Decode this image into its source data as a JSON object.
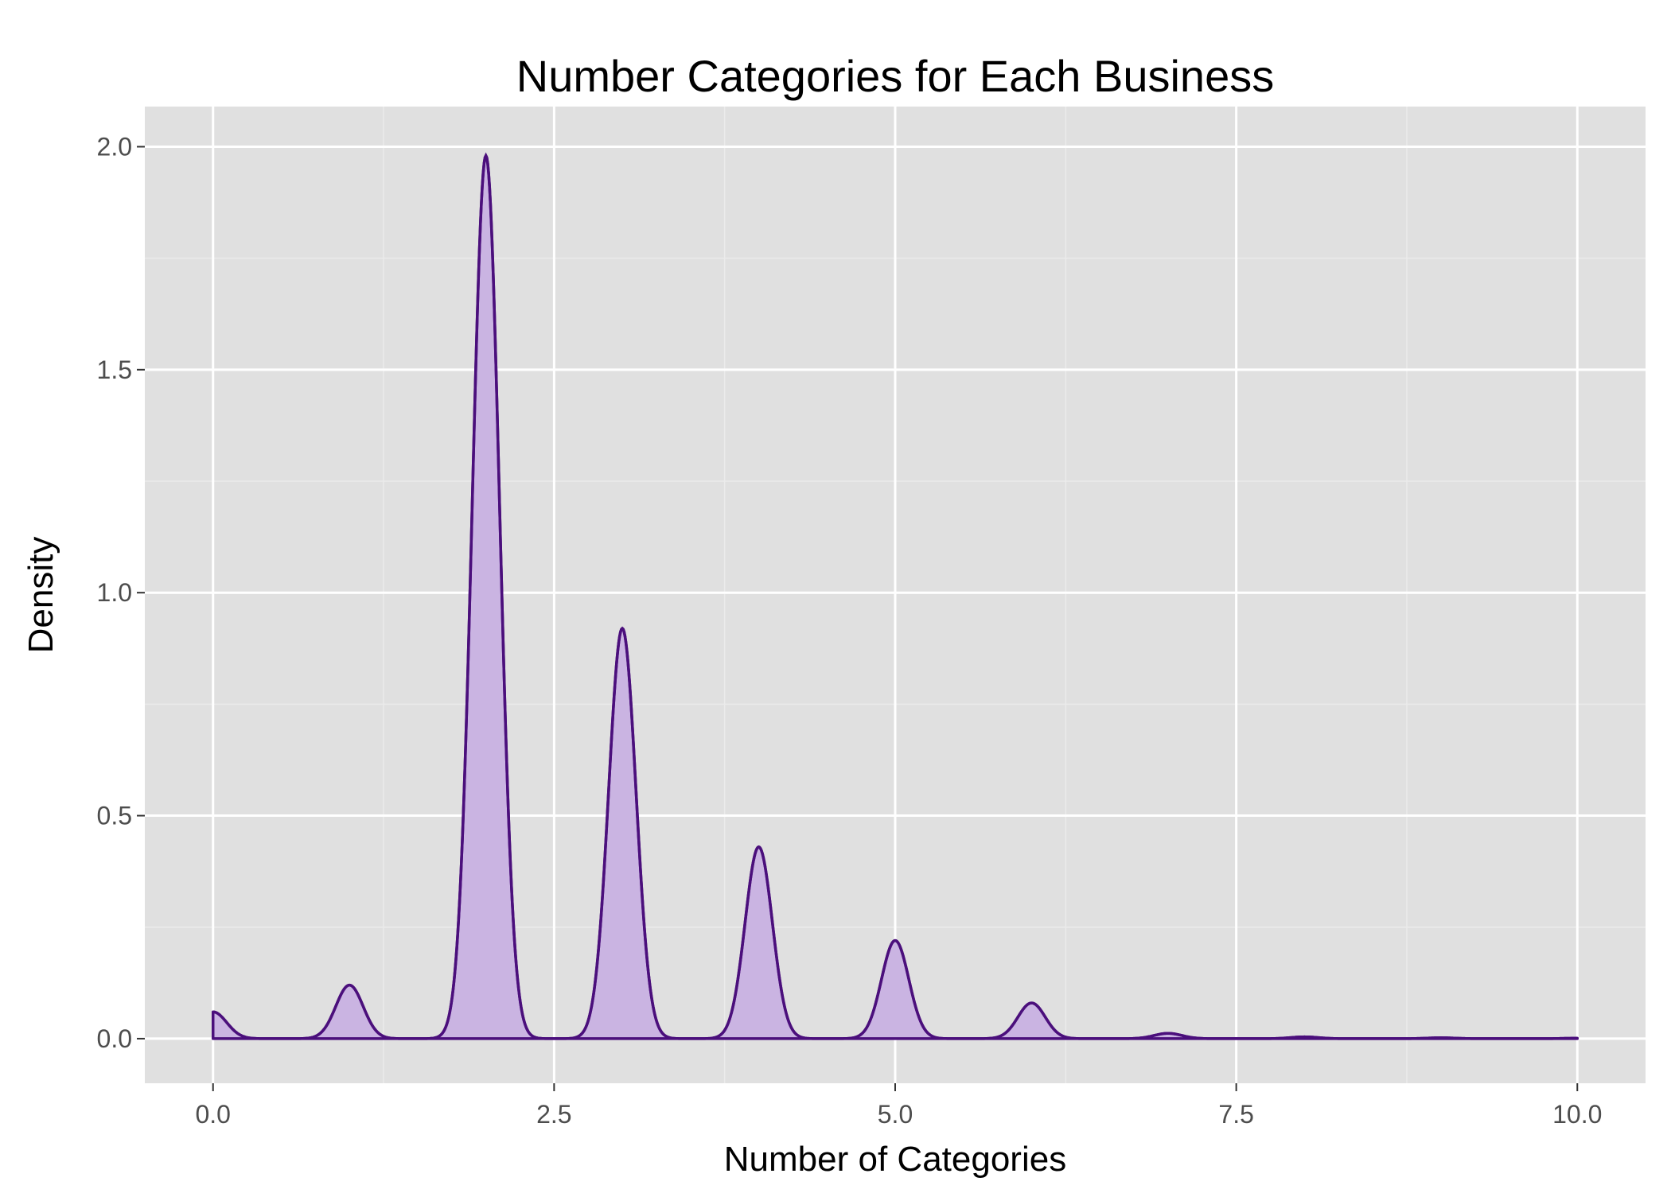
{
  "chart_data": {
    "type": "area",
    "title": "Number Categories for Each Business",
    "xlabel": "Number of Categories",
    "ylabel": "Density",
    "xlim": [
      -0.5,
      10.5
    ],
    "ylim": [
      -0.1,
      2.09
    ],
    "x_ticks": [
      0.0,
      2.5,
      5.0,
      7.5,
      10.0
    ],
    "x_tick_labels": [
      "0.0",
      "2.5",
      "5.0",
      "7.5",
      "10.0"
    ],
    "y_ticks": [
      0.0,
      0.5,
      1.0,
      1.5,
      2.0
    ],
    "y_tick_labels": [
      "0.0",
      "0.5",
      "1.0",
      "1.5",
      "2.0"
    ],
    "grid": true,
    "density_peaks": [
      {
        "x": 0,
        "y": 0.06
      },
      {
        "x": 1,
        "y": 0.12
      },
      {
        "x": 2,
        "y": 1.98
      },
      {
        "x": 3,
        "y": 0.92
      },
      {
        "x": 4,
        "y": 0.43
      },
      {
        "x": 5,
        "y": 0.22
      },
      {
        "x": 6,
        "y": 0.08
      },
      {
        "x": 7,
        "y": 0.012
      },
      {
        "x": 8,
        "y": 0.004
      },
      {
        "x": 9,
        "y": 0.002
      },
      {
        "x": 10,
        "y": 0.001
      }
    ],
    "x_range": [
      0,
      10
    ],
    "colors": {
      "fill": "#cab4e2",
      "line": "#4b0f7c",
      "panel": "#e0e0e0",
      "grid_major": "#ffffff",
      "grid_minor": "#ebebeb"
    }
  }
}
